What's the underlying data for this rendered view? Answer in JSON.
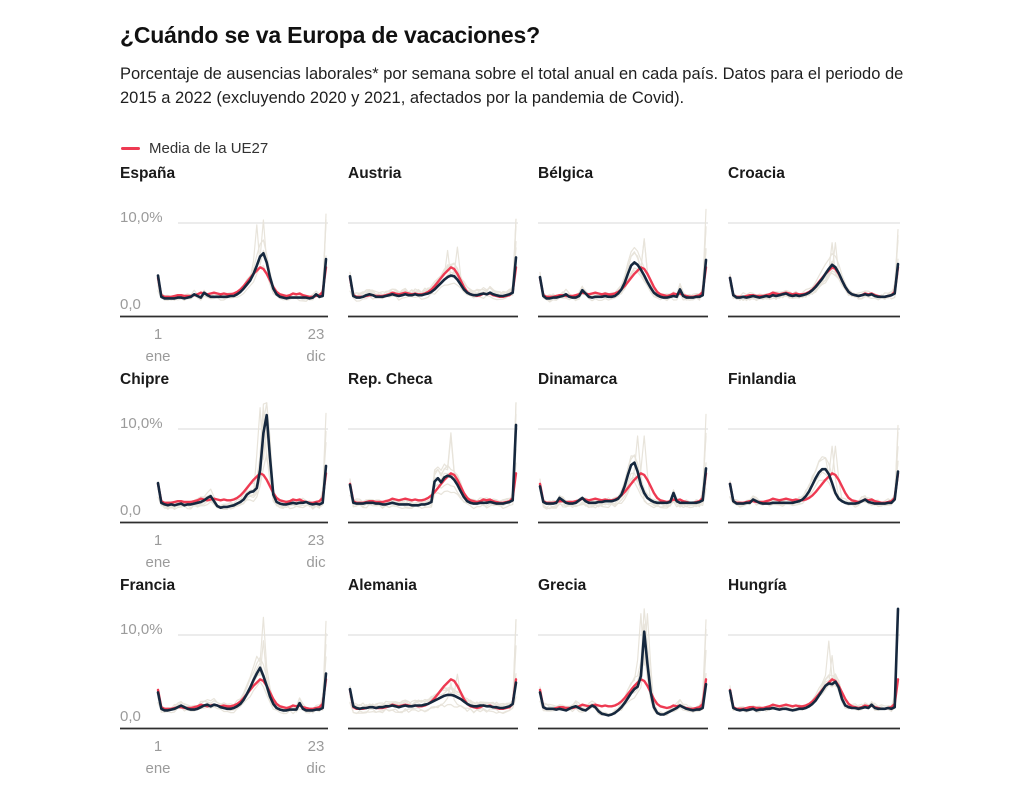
{
  "page": {
    "title": "¿Cuándo se va Europa de vacaciones?",
    "subtitle": "Porcentaje de ausencias laborales* por semana sobre el total anual en cada país. Datos para el periodo de 2015 a 2022 (excluyendo 2020 y 2021, afectados por la pandemia de Covid).",
    "legend_label": "Media de la UE27"
  },
  "colors": {
    "country_line": "#16283e",
    "eu27_line": "#ee3a52",
    "year_line": "#e8e4db",
    "gridline": "#d8d8d8",
    "axis_line": "#2e2e2e",
    "axis_label": "#9b9b9b"
  },
  "axis": {
    "y_top_label": "10,0%",
    "y_zero_label": "0,0",
    "x_start_tick": [
      "1",
      "ene"
    ],
    "x_end_tick": [
      "23",
      "dic"
    ]
  },
  "chart_data": {
    "type": "line",
    "x_unit": "semana del año (1-52)",
    "y_unit": "% de ausencias laborales sobre el total anual",
    "ylim": [
      0,
      14
    ],
    "gridline_value": 10.0,
    "background_lines_note": "líneas grises: años individuales 2015-2019 y 2022",
    "eu27": {
      "name": "Media de la UE27",
      "values": [
        3.3,
        1.2,
        1.0,
        1.0,
        1.0,
        1.1,
        1.2,
        1.2,
        1.1,
        1.1,
        1.1,
        1.2,
        1.3,
        1.5,
        1.4,
        1.3,
        1.4,
        1.5,
        1.4,
        1.3,
        1.4,
        1.3,
        1.3,
        1.4,
        1.6,
        1.9,
        2.3,
        2.8,
        3.3,
        3.8,
        4.2,
        4.6,
        4.4,
        3.8,
        3.0,
        2.2,
        1.6,
        1.3,
        1.2,
        1.1,
        1.2,
        1.4,
        1.3,
        1.4,
        1.2,
        1.1,
        1.0,
        1.0,
        1.1,
        1.2,
        1.6,
        4.6
      ]
    },
    "countries": [
      {
        "name": "España",
        "values": [
          3.6,
          1.0,
          0.8,
          0.8,
          0.8,
          0.8,
          0.9,
          0.9,
          0.8,
          0.9,
          1.0,
          1.3,
          1.1,
          0.9,
          1.5,
          1.2,
          1.0,
          1.0,
          1.0,
          1.0,
          1.0,
          1.0,
          1.1,
          1.1,
          1.3,
          1.6,
          2.0,
          2.5,
          3.0,
          3.8,
          4.8,
          5.9,
          6.3,
          5.2,
          3.4,
          2.0,
          1.3,
          1.0,
          0.9,
          0.8,
          0.9,
          0.9,
          0.9,
          0.9,
          0.9,
          0.9,
          0.8,
          0.9,
          1.3,
          1.0,
          1.1,
          5.6
        ]
      },
      {
        "name": "Austria",
        "values": [
          3.5,
          1.1,
          0.9,
          0.9,
          1.0,
          1.2,
          1.3,
          1.2,
          1.0,
          1.0,
          1.0,
          1.1,
          1.2,
          1.3,
          1.2,
          1.1,
          1.2,
          1.3,
          1.2,
          1.2,
          1.3,
          1.2,
          1.2,
          1.3,
          1.4,
          1.6,
          1.9,
          2.3,
          2.7,
          3.1,
          3.4,
          3.6,
          3.5,
          3.1,
          2.5,
          1.9,
          1.5,
          1.3,
          1.2,
          1.2,
          1.3,
          1.4,
          1.3,
          1.5,
          1.3,
          1.2,
          1.1,
          1.1,
          1.2,
          1.3,
          1.5,
          5.8
        ]
      },
      {
        "name": "Bélgica",
        "values": [
          3.4,
          1.1,
          0.8,
          0.8,
          0.9,
          0.9,
          1.0,
          1.1,
          1.3,
          1.0,
          0.9,
          0.9,
          1.1,
          1.8,
          1.4,
          1.0,
          0.9,
          1.0,
          1.0,
          1.0,
          1.1,
          1.0,
          1.0,
          1.1,
          1.4,
          1.9,
          2.7,
          3.8,
          4.8,
          5.2,
          4.9,
          4.3,
          3.6,
          2.8,
          2.1,
          1.5,
          1.2,
          1.0,
          0.9,
          0.9,
          1.0,
          1.1,
          1.0,
          1.9,
          1.1,
          0.9,
          0.9,
          0.9,
          1.0,
          1.0,
          1.2,
          5.5
        ]
      },
      {
        "name": "Croacia",
        "values": [
          3.3,
          1.2,
          0.9,
          0.9,
          1.0,
          0.9,
          1.0,
          1.1,
          1.0,
          0.9,
          1.0,
          1.1,
          1.0,
          1.2,
          1.1,
          1.2,
          1.3,
          1.4,
          1.2,
          1.1,
          1.2,
          1.1,
          1.2,
          1.3,
          1.5,
          1.8,
          2.2,
          2.7,
          3.2,
          3.8,
          4.4,
          4.9,
          4.6,
          3.9,
          3.0,
          2.2,
          1.6,
          1.3,
          1.2,
          1.1,
          1.2,
          1.3,
          1.2,
          1.3,
          1.1,
          1.0,
          1.0,
          1.0,
          1.1,
          1.2,
          1.4,
          5.0
        ]
      },
      {
        "name": "Chipre",
        "values": [
          3.4,
          1.0,
          0.8,
          0.7,
          0.8,
          0.7,
          0.8,
          0.9,
          0.7,
          0.8,
          0.8,
          0.9,
          1.0,
          1.1,
          1.3,
          1.6,
          1.8,
          1.2,
          0.6,
          0.4,
          0.5,
          0.5,
          0.6,
          0.7,
          0.9,
          1.1,
          1.4,
          2.0,
          2.3,
          2.4,
          2.8,
          5.0,
          9.5,
          11.7,
          6.5,
          2.0,
          1.1,
          0.9,
          0.8,
          0.8,
          0.9,
          1.0,
          0.9,
          1.0,
          1.0,
          1.1,
          0.9,
          0.8,
          0.9,
          0.8,
          1.0,
          5.5
        ]
      },
      {
        "name": "Rep. Checa",
        "values": [
          3.2,
          1.0,
          0.9,
          0.9,
          0.9,
          1.0,
          1.0,
          1.0,
          0.9,
          0.9,
          0.8,
          0.8,
          0.9,
          1.0,
          0.9,
          0.8,
          0.8,
          0.8,
          0.8,
          0.7,
          0.7,
          0.7,
          0.8,
          0.8,
          0.9,
          1.1,
          3.6,
          4.0,
          3.5,
          4.1,
          4.3,
          4.2,
          3.8,
          3.2,
          2.4,
          1.7,
          1.2,
          1.0,
          0.9,
          0.9,
          1.0,
          1.0,
          1.0,
          1.1,
          1.0,
          0.9,
          0.9,
          0.9,
          1.0,
          1.1,
          1.3,
          10.5
        ]
      },
      {
        "name": "Dinamarca",
        "values": [
          3.0,
          1.1,
          0.9,
          0.9,
          0.9,
          1.0,
          1.6,
          1.3,
          1.0,
          0.9,
          0.9,
          1.0,
          1.3,
          1.6,
          1.2,
          1.0,
          1.0,
          1.0,
          1.1,
          1.1,
          1.2,
          1.2,
          1.2,
          1.3,
          1.5,
          2.0,
          3.0,
          4.4,
          5.6,
          5.9,
          4.8,
          3.2,
          2.2,
          1.6,
          1.3,
          1.1,
          1.0,
          1.0,
          1.0,
          1.0,
          1.1,
          2.2,
          1.2,
          1.0,
          1.0,
          1.0,
          1.0,
          1.0,
          1.0,
          1.1,
          1.3,
          5.2
        ]
      },
      {
        "name": "Finlandia",
        "values": [
          3.3,
          1.2,
          0.9,
          0.9,
          0.9,
          1.0,
          1.0,
          1.4,
          1.2,
          1.0,
          0.9,
          0.9,
          0.9,
          1.0,
          1.0,
          1.0,
          1.0,
          1.0,
          1.0,
          1.0,
          1.1,
          1.2,
          1.4,
          1.8,
          2.4,
          3.2,
          4.0,
          4.7,
          5.1,
          5.1,
          4.5,
          3.4,
          2.2,
          1.5,
          1.2,
          1.0,
          0.9,
          0.9,
          0.9,
          1.0,
          1.2,
          1.4,
          1.1,
          1.0,
          0.9,
          0.9,
          0.9,
          0.9,
          1.0,
          1.0,
          1.4,
          4.8
        ]
      },
      {
        "name": "Francia",
        "values": [
          3.0,
          1.0,
          0.8,
          0.8,
          0.9,
          1.0,
          1.2,
          1.4,
          1.2,
          1.0,
          0.9,
          0.9,
          1.0,
          1.2,
          1.4,
          1.5,
          1.3,
          1.5,
          1.4,
          1.2,
          1.1,
          1.0,
          1.0,
          1.1,
          1.3,
          1.6,
          2.1,
          2.8,
          3.6,
          4.5,
          5.3,
          6.0,
          5.0,
          3.8,
          2.5,
          1.6,
          1.1,
          0.9,
          0.8,
          0.8,
          0.9,
          0.9,
          0.9,
          1.7,
          1.0,
          0.8,
          0.8,
          0.8,
          0.9,
          0.9,
          1.1,
          5.3
        ]
      },
      {
        "name": "Alemania",
        "values": [
          3.4,
          1.3,
          1.1,
          1.0,
          1.1,
          1.1,
          1.2,
          1.2,
          1.1,
          1.2,
          1.2,
          1.3,
          1.3,
          1.4,
          1.3,
          1.2,
          1.3,
          1.4,
          1.3,
          1.3,
          1.4,
          1.4,
          1.4,
          1.5,
          1.6,
          1.8,
          2.0,
          2.2,
          2.4,
          2.6,
          2.7,
          2.7,
          2.6,
          2.4,
          2.2,
          1.9,
          1.6,
          1.4,
          1.3,
          1.3,
          1.4,
          1.4,
          1.3,
          1.3,
          1.2,
          1.2,
          1.1,
          1.1,
          1.2,
          1.3,
          1.6,
          4.2
        ]
      },
      {
        "name": "Grecia",
        "values": [
          3.0,
          1.2,
          1.0,
          1.0,
          1.0,
          0.9,
          1.0,
          0.9,
          0.8,
          1.0,
          1.2,
          1.3,
          1.1,
          0.9,
          0.8,
          1.1,
          1.4,
          1.2,
          0.7,
          0.4,
          0.3,
          0.2,
          0.3,
          0.5,
          0.8,
          1.2,
          1.7,
          2.3,
          2.9,
          3.4,
          3.7,
          5.0,
          10.4,
          6.5,
          3.0,
          1.2,
          0.5,
          0.3,
          0.3,
          0.5,
          0.7,
          0.9,
          1.1,
          1.4,
          1.2,
          1.0,
          0.9,
          0.8,
          0.9,
          0.9,
          1.1,
          4.0
        ]
      },
      {
        "name": "Hungría",
        "values": [
          3.2,
          1.1,
          0.9,
          0.8,
          0.9,
          0.8,
          0.9,
          1.0,
          0.8,
          0.9,
          0.9,
          1.0,
          1.0,
          1.1,
          1.0,
          0.9,
          1.0,
          1.0,
          0.9,
          0.8,
          0.9,
          1.0,
          1.0,
          1.1,
          1.3,
          1.6,
          2.0,
          2.6,
          3.2,
          3.8,
          4.1,
          4.0,
          4.3,
          3.6,
          2.2,
          1.4,
          1.2,
          1.1,
          1.1,
          1.0,
          1.1,
          1.2,
          1.1,
          1.5,
          1.1,
          1.0,
          1.0,
          1.0,
          1.1,
          1.0,
          1.2,
          13.2
        ]
      }
    ]
  }
}
